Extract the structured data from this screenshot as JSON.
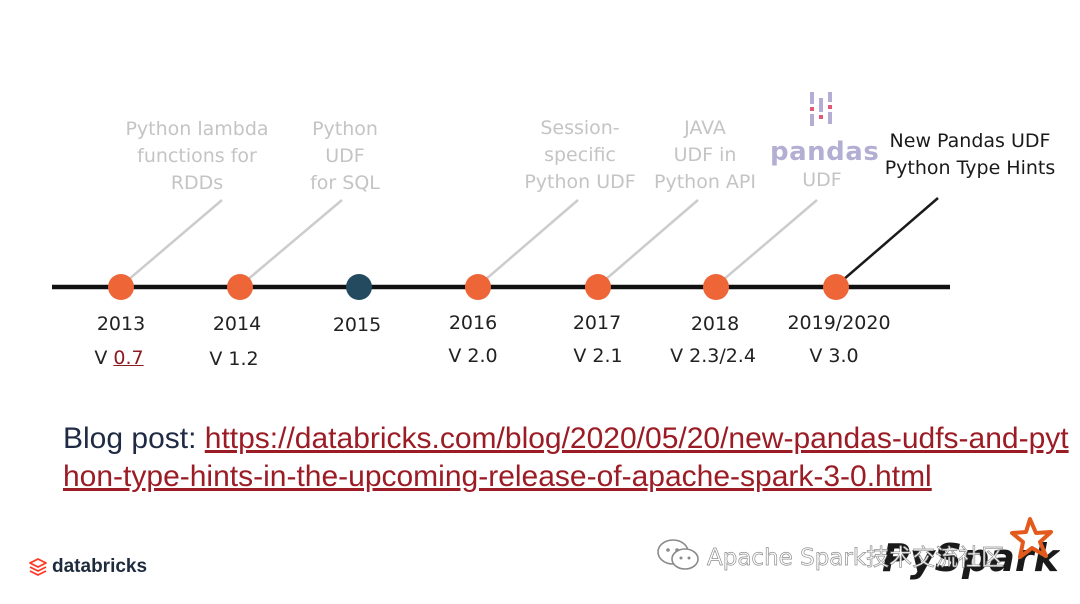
{
  "timeline": {
    "colors": {
      "line": "#111111",
      "dot": "#ee6538",
      "dot_highlight": "#234a5f",
      "connector": "#cccccc",
      "connector_active": "#1a1a1a"
    },
    "events": [
      {
        "label": "Python lambda\nfunctions for\nRDDs",
        "active": false
      },
      {
        "label": "Python\nUDF\nfor SQL",
        "active": false
      },
      {
        "label": "Session-\nspecific\nPython UDF",
        "active": false
      },
      {
        "label": "JAVA\nUDF in\nPython API",
        "active": false
      },
      {
        "label": "UDF",
        "logo_text": "pandas",
        "active": false
      },
      {
        "label": "New Pandas UDF\nPython Type Hints",
        "active": true
      }
    ],
    "milestones": [
      {
        "year": "2013",
        "version_prefix": "V ",
        "version": "0.7",
        "version_linked": true,
        "dot": "orange"
      },
      {
        "year": "2014",
        "version_prefix": "",
        "version": "V 1.2",
        "version_linked": false,
        "dot": "orange"
      },
      {
        "year": "2015",
        "version_prefix": "",
        "version": "",
        "version_linked": false,
        "dot": "navy"
      },
      {
        "year": "2016",
        "version_prefix": "",
        "version": "V 2.0",
        "version_linked": false,
        "dot": "orange"
      },
      {
        "year": "2017",
        "version_prefix": "",
        "version": "V 2.1",
        "version_linked": false,
        "dot": "orange"
      },
      {
        "year": "2018",
        "version_prefix": "",
        "version": "V 2.3/2.4",
        "version_linked": false,
        "dot": "orange"
      },
      {
        "year": "2019/2020",
        "version_prefix": "",
        "version": "V 3.0",
        "version_linked": false,
        "dot": "orange"
      }
    ]
  },
  "blog": {
    "prefix": "Blog post: ",
    "url": "https://databricks.com/blog/2020/05/20/new-pandas-udfs-and-python-type-hints-in-the-upcoming-release-of-apache-spark-3-0.html"
  },
  "footer": {
    "brand": "databricks",
    "brand_icon": "databricks-stack-icon",
    "watermark": "Apache Spark技术交流社区",
    "watermark_icon": "wechat-icon",
    "pyspark_logo": "PySpark"
  }
}
